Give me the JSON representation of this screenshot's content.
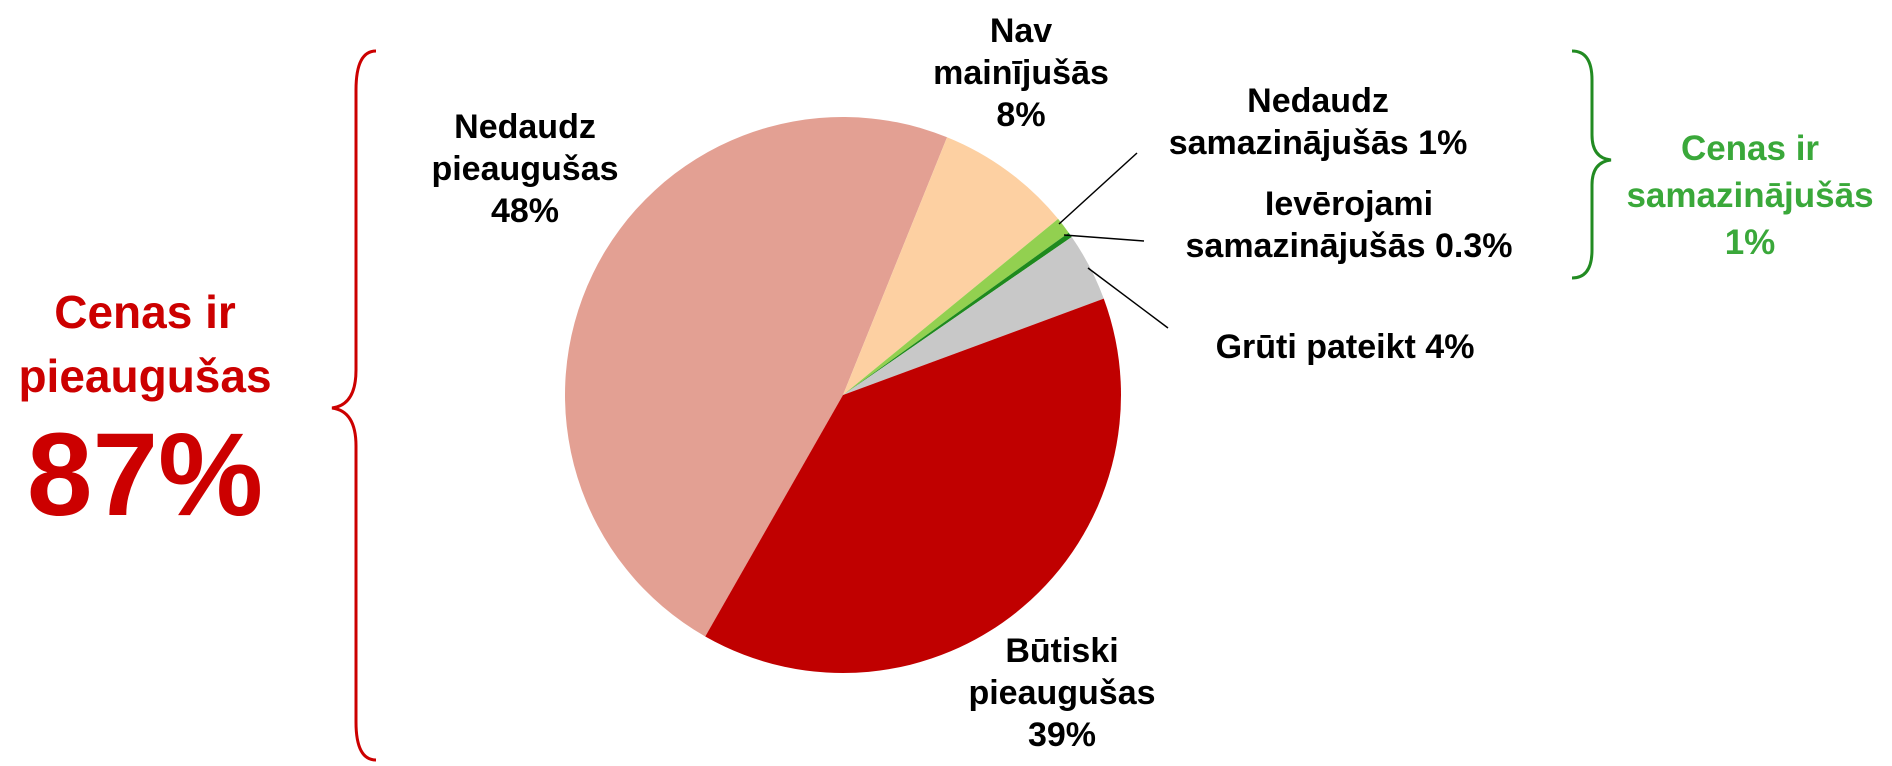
{
  "chart_data": {
    "type": "pie",
    "categories": [
      "Nedaudz pieaugušas",
      "Nav mainījušās",
      "Nedaudz samazinājušās",
      "Ievērojami samazinājušās",
      "Grūti pateikt",
      "Būtiski pieaugušas"
    ],
    "values": [
      48,
      8,
      1,
      0.3,
      4,
      39
    ],
    "value_labels": [
      "48%",
      "8%",
      "1%",
      "0.3%",
      "4%",
      "39%"
    ],
    "colors": [
      "#e3a093",
      "#fdd0a2",
      "#92d050",
      "#1e8a1e",
      "#c8c8c8",
      "#c00000"
    ],
    "annotations": [
      {
        "text": "Cenas ir pieaugušas",
        "color": "#cc0000"
      },
      {
        "text": "87%",
        "color": "#cc0000"
      },
      {
        "text": "Cenas ir samazinājušās 1%",
        "color": "#3aa83a"
      }
    ]
  }
}
